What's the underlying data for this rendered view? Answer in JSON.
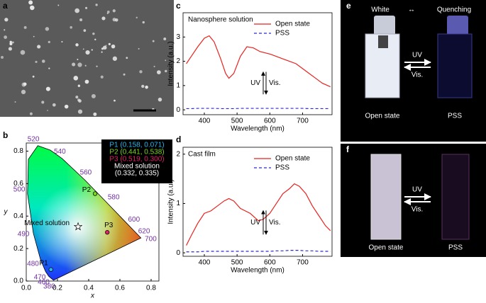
{
  "panel_labels": [
    "a",
    "b",
    "c",
    "d",
    "e",
    "f"
  ],
  "chart_data": [
    {
      "type": "cie",
      "xlabel": "x",
      "ylabel": "y",
      "xlim": [
        0,
        0.85
      ],
      "ylim": [
        0,
        0.85
      ],
      "xticks": [
        {
          "value": 0,
          "label": "0.0"
        },
        0.2,
        0.4,
        0.6,
        0.8
      ],
      "yticks": [
        {
          "value": 0,
          "label": "0.0"
        },
        0.2,
        0.4,
        0.6,
        0.8
      ],
      "locus": {
        "labels": [
          "380",
          "460",
          "470",
          "480",
          "490",
          "500",
          null,
          "520",
          null,
          "540",
          "560",
          "580",
          "600",
          "620",
          "700"
        ],
        "x": [
          0.1741,
          0.144,
          0.1241,
          0.0913,
          0.0454,
          0.0082,
          0.0139,
          0.0743,
          0.1547,
          0.2296,
          0.3731,
          0.5125,
          0.627,
          0.6915,
          0.7347
        ],
        "y": [
          0.005,
          0.0297,
          0.0578,
          0.1327,
          0.295,
          0.5384,
          0.7502,
          0.8338,
          0.8059,
          0.7543,
          0.6245,
          0.4866,
          0.3725,
          0.3083,
          0.2653
        ]
      },
      "points": [
        {
          "name": "P1",
          "x": 0.158,
          "y": 0.071,
          "legend": "P1 (0.158, 0.071)",
          "color": "#29b6f0",
          "marker": "circle"
        },
        {
          "name": "P2",
          "x": 0.441,
          "y": 0.538,
          "legend": "P2 (0.441, 0.538)",
          "color": "#7ed321",
          "marker": "circle"
        },
        {
          "name": "P3",
          "x": 0.519,
          "y": 0.3,
          "legend": "P3 (0.519, 0.300)",
          "color": "#e0206a",
          "marker": "circle"
        },
        {
          "name": "Mixed solution",
          "x": 0.332,
          "y": 0.335,
          "legend": "(0.332, 0.335)",
          "color": "#ffffff",
          "marker": "star"
        }
      ]
    },
    {
      "type": "line",
      "title": "Nanosphere solution",
      "xlabel": "Wavelength (nm)",
      "ylabel": "Intensity (a.u.)",
      "xlim": [
        335,
        790
      ],
      "ylim": [
        -0.2,
        4
      ],
      "xticks": [
        400,
        500,
        600,
        700
      ],
      "yticks": [
        0,
        1,
        2,
        3
      ],
      "annotations": [
        "UV",
        "Vis."
      ],
      "x": [
        345,
        360,
        380,
        400,
        415,
        430,
        450,
        465,
        475,
        490,
        510,
        530,
        550,
        570,
        600,
        620,
        640,
        660,
        680,
        700,
        720,
        740,
        760,
        785
      ],
      "series": [
        {
          "name": "Open state",
          "color": "#e8231f",
          "dash": false,
          "values": [
            1.9,
            2.2,
            2.6,
            2.95,
            3.05,
            2.8,
            2.1,
            1.5,
            1.3,
            1.5,
            2.2,
            2.6,
            2.55,
            2.4,
            2.3,
            2.2,
            2.1,
            2.0,
            1.9,
            1.7,
            1.5,
            1.3,
            1.1,
            0.95
          ]
        },
        {
          "name": "PSS",
          "color": "#2b2bd0",
          "dash": true,
          "values": [
            0.05,
            0.05,
            0.06,
            0.06,
            0.06,
            0.06,
            0.05,
            0.05,
            0.05,
            0.05,
            0.06,
            0.06,
            0.06,
            0.06,
            0.06,
            0.06,
            0.06,
            0.06,
            0.06,
            0.06,
            0.05,
            0.05,
            0.05,
            0.05
          ]
        }
      ]
    },
    {
      "type": "line",
      "title": "Cast film",
      "xlabel": "Wavelength (nm)",
      "ylabel": "Intensity (a.u.)",
      "xlim": [
        335,
        790
      ],
      "ylim": [
        -0.07,
        2.14
      ],
      "xticks": [
        400,
        500,
        600,
        700
      ],
      "yticks": [
        0,
        1,
        2
      ],
      "annotations": [
        "UV",
        "Vis."
      ],
      "x": [
        345,
        360,
        380,
        400,
        420,
        440,
        460,
        475,
        490,
        510,
        540,
        565,
        580,
        600,
        620,
        640,
        660,
        675,
        690,
        710,
        730,
        750,
        770,
        785
      ],
      "series": [
        {
          "name": "Open state",
          "color": "#e8231f",
          "dash": false,
          "values": [
            0.15,
            0.35,
            0.6,
            0.8,
            0.85,
            0.95,
            1.05,
            1.1,
            1.05,
            0.9,
            0.8,
            0.65,
            0.68,
            0.8,
            1.0,
            1.2,
            1.3,
            1.4,
            1.35,
            1.2,
            0.95,
            0.75,
            0.55,
            0.45
          ]
        },
        {
          "name": "PSS",
          "color": "#2b2bd0",
          "dash": true,
          "values": [
            0.02,
            0.02,
            0.02,
            0.03,
            0.03,
            0.03,
            0.03,
            0.03,
            0.03,
            0.03,
            0.03,
            0.03,
            0.03,
            0.03,
            0.04,
            0.04,
            0.05,
            0.05,
            0.05,
            0.04,
            0.04,
            0.03,
            0.03,
            0.03
          ]
        }
      ]
    }
  ],
  "photos": {
    "e": {
      "top_left": "White",
      "arrow": "↔",
      "top_right": "Quenching",
      "forward": "UV",
      "back": "Vis.",
      "left": "Open state",
      "right": "PSS"
    },
    "f": {
      "forward": "UV",
      "back": "Vis.",
      "left": "Open state",
      "right": "PSS"
    }
  }
}
